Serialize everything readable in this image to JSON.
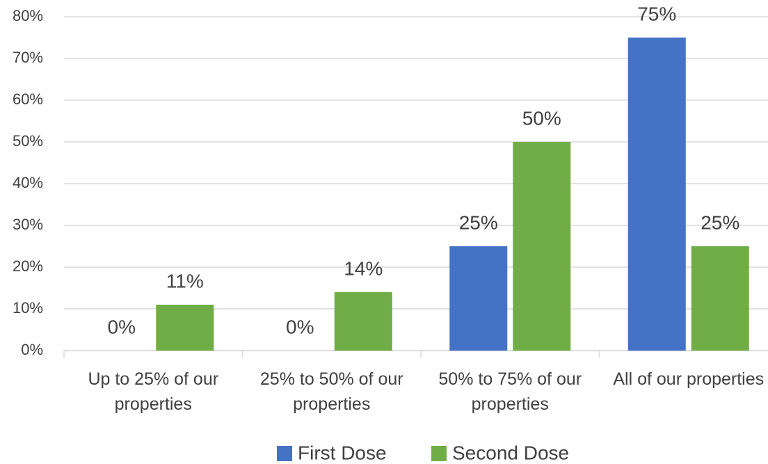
{
  "chart_data": {
    "type": "bar",
    "categories": [
      "Up to 25% of our properties",
      "25% to 50% of our properties",
      "50% to 75% of our properties",
      "All of our properties"
    ],
    "series": [
      {
        "name": "First Dose",
        "color": "#4472c4",
        "values": [
          0,
          0,
          25,
          75
        ],
        "value_labels": [
          "0%",
          "0%",
          "25%",
          "75%"
        ]
      },
      {
        "name": "Second Dose",
        "color": "#70ad47",
        "values": [
          11,
          14,
          50,
          25
        ],
        "value_labels": [
          "11%",
          "14%",
          "50%",
          "25%"
        ]
      }
    ],
    "ylim": [
      0,
      80
    ],
    "yticks": [
      {
        "value": 0,
        "label": "0%"
      },
      {
        "value": 10,
        "label": "10%"
      },
      {
        "value": 20,
        "label": "20%"
      },
      {
        "value": 30,
        "label": "30%"
      },
      {
        "value": 40,
        "label": "40%"
      },
      {
        "value": 50,
        "label": "50%"
      },
      {
        "value": 60,
        "label": "60%"
      },
      {
        "value": 70,
        "label": "70%"
      },
      {
        "value": 80,
        "label": "80%"
      }
    ],
    "grid": true,
    "legend": "bottom"
  }
}
